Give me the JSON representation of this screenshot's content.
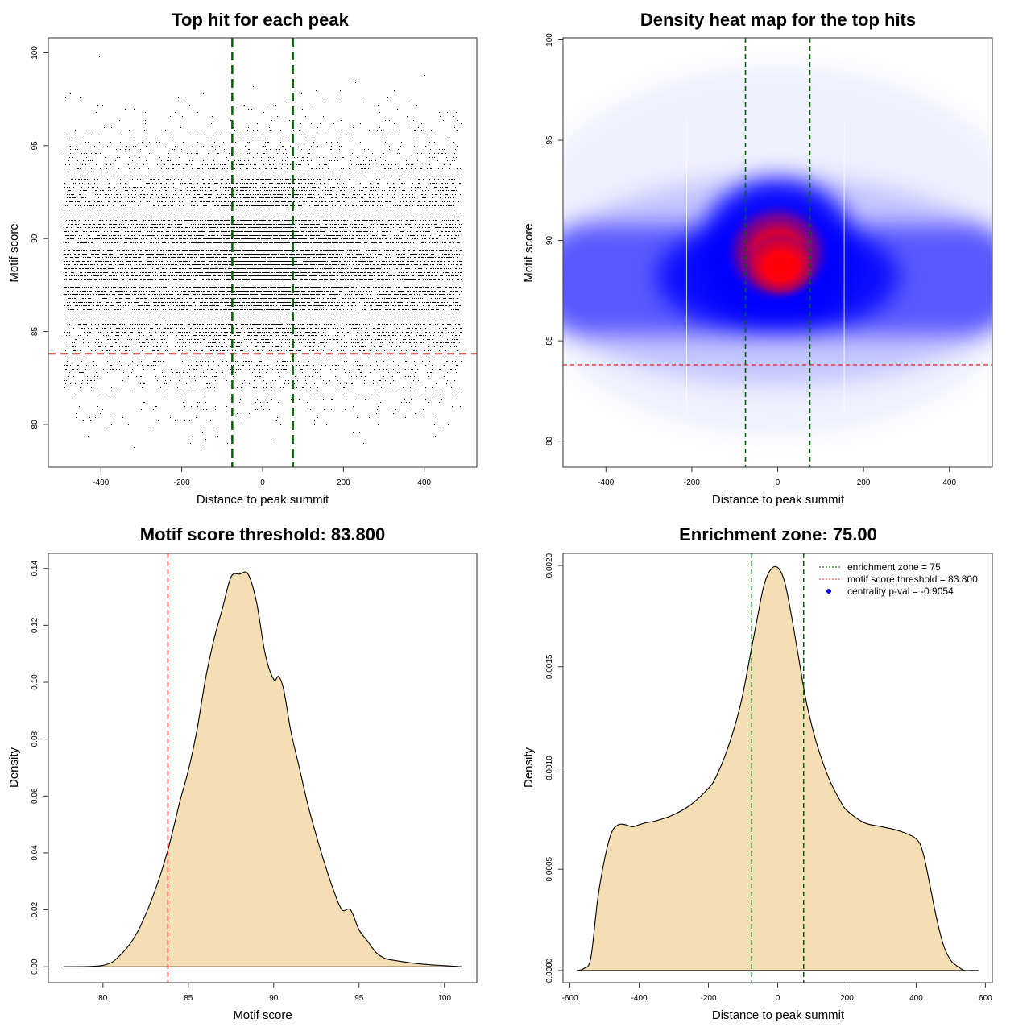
{
  "colors": {
    "threshold": "#e03030",
    "zone": "#006400",
    "fill": "#f5deb3",
    "heat_low": "#0000ff",
    "heat_high": "#ff0000",
    "points": "#000000",
    "pval_dot": "#0000ff"
  },
  "chart_data": [
    {
      "type": "scatter",
      "title": "Top hit for each peak",
      "xlabel": "Distance to peak summit",
      "ylabel": "Motif score",
      "xlim": [
        -530,
        530
      ],
      "ylim": [
        77.7,
        100.8
      ],
      "xticks": [
        -400,
        -200,
        0,
        200,
        400
      ],
      "yticks": [
        80,
        85,
        90,
        95,
        100
      ],
      "tick_labels_x": [
        "-400",
        "-200",
        "0",
        "200",
        "400"
      ],
      "tick_labels_y": [
        "80",
        "85",
        "90",
        "95",
        "100"
      ],
      "point_x_range": [
        -492,
        492
      ],
      "point_count_approx": 20000,
      "center_mean": 89,
      "center_sd": 2.2,
      "flank_mean": 88.5,
      "flank_sd": 3,
      "score_max": 100,
      "score_min": 78.8,
      "threshold": 83.8,
      "enrichment_zone": [
        -75,
        75
      ]
    },
    {
      "type": "heatmap",
      "title": "Density heat map for the top hits",
      "xlabel": "Distance to peak summit",
      "ylabel": "Motif score",
      "xlim": [
        -500,
        500
      ],
      "ylim": [
        78.7,
        100.1
      ],
      "xticks": [
        -400,
        -200,
        0,
        200,
        400
      ],
      "yticks": [
        80,
        85,
        90,
        95,
        100
      ],
      "tick_labels_x": [
        "-400",
        "-200",
        "0",
        "200",
        "400"
      ],
      "tick_labels_y": [
        "80",
        "85",
        "90",
        "95",
        "100"
      ],
      "peak": {
        "x": 0,
        "y": 88.7
      },
      "threshold": 83.8,
      "enrichment_zone": [
        -75,
        75
      ],
      "faint_lines_x": [
        -212,
        155
      ]
    },
    {
      "type": "area",
      "title": "Motif score threshold: 83.800",
      "xlabel": "Motif score",
      "ylabel": "Density",
      "xlim": [
        76.8,
        101.9
      ],
      "ylim": [
        -0.0056,
        0.1453
      ],
      "xticks": [
        80,
        85,
        90,
        95,
        100
      ],
      "yticks": [
        0.0,
        0.02,
        0.04,
        0.06,
        0.08,
        0.1,
        0.12,
        0.14
      ],
      "tick_labels_x": [
        "80",
        "85",
        "90",
        "95",
        "100"
      ],
      "tick_labels_y": [
        "0.00",
        "0.02",
        "0.04",
        "0.06",
        "0.08",
        "0.10",
        "0.12",
        "0.14"
      ],
      "x": [
        77.7,
        80,
        81,
        82,
        83,
        83.8,
        84.5,
        85,
        85.5,
        86,
        86.5,
        87,
        87.5,
        88,
        88.5,
        89,
        89.5,
        90,
        90.3,
        90.6,
        91,
        91.5,
        92,
        92.5,
        93,
        93.5,
        94,
        94.5,
        95,
        95.5,
        96,
        96.5,
        97,
        98,
        99,
        100,
        101
      ],
      "y": [
        0.0,
        0.0005,
        0.004,
        0.012,
        0.026,
        0.041,
        0.058,
        0.069,
        0.083,
        0.101,
        0.115,
        0.126,
        0.137,
        0.138,
        0.138,
        0.128,
        0.11,
        0.101,
        0.102,
        0.097,
        0.083,
        0.07,
        0.057,
        0.046,
        0.036,
        0.027,
        0.02,
        0.02,
        0.013,
        0.009,
        0.005,
        0.003,
        0.0023,
        0.0014,
        0.0008,
        0.0004,
        0.0
      ]
    },
    {
      "type": "area",
      "title": "Enrichment zone: 75.00",
      "xlabel": "Distance to peak summit",
      "ylabel": "Density",
      "xlim": [
        -620,
        620
      ],
      "ylim": [
        -6e-05,
        0.00206
      ],
      "xticks": [
        -600,
        -400,
        -200,
        0,
        200,
        400,
        600
      ],
      "yticks": [
        0.0,
        0.0005,
        0.001,
        0.0015,
        0.002
      ],
      "tick_labels_x": [
        "-600",
        "-400",
        "-200",
        "0",
        "200",
        "400",
        "600"
      ],
      "tick_labels_y": [
        "0.0000",
        "0.0005",
        "0.0010",
        "0.0015",
        "0.0020"
      ],
      "x": [
        -580,
        -560,
        -540,
        -520,
        -500,
        -480,
        -460,
        -440,
        -420,
        -400,
        -380,
        -350,
        -300,
        -250,
        -200,
        -180,
        -150,
        -120,
        -100,
        -80,
        -60,
        -40,
        -20,
        0,
        20,
        40,
        60,
        80,
        100,
        120,
        150,
        180,
        200,
        250,
        300,
        350,
        400,
        420,
        440,
        460,
        480,
        500,
        520,
        540,
        560,
        580
      ],
      "y": [
        0.0,
        1e-05,
        6e-05,
        0.00035,
        0.00055,
        0.00068,
        0.00072,
        0.00072,
        0.00071,
        0.00072,
        0.00073,
        0.00074,
        0.00077,
        0.00082,
        0.0009,
        0.00095,
        0.00107,
        0.00123,
        0.00137,
        0.00155,
        0.00173,
        0.0019,
        0.00198,
        0.00199,
        0.00192,
        0.00175,
        0.00155,
        0.00135,
        0.0012,
        0.00108,
        0.00094,
        0.00084,
        0.00079,
        0.00073,
        0.00071,
        0.00069,
        0.00065,
        0.00058,
        0.00042,
        0.00025,
        0.00012,
        5e-05,
        2e-05,
        0.0,
        0.0,
        0.0
      ],
      "legend": [
        {
          "label": "enrichment zone = 75",
          "style": "dotted",
          "color": "#006400"
        },
        {
          "label": "motif score threshold = 83.800",
          "style": "dotted",
          "color": "#e03030"
        },
        {
          "label": "centrality p-val = -0.9054",
          "style": "dot",
          "color": "#0000ff"
        }
      ],
      "legend_position": "top-right",
      "threshold_zone": [
        -75,
        75
      ]
    }
  ]
}
